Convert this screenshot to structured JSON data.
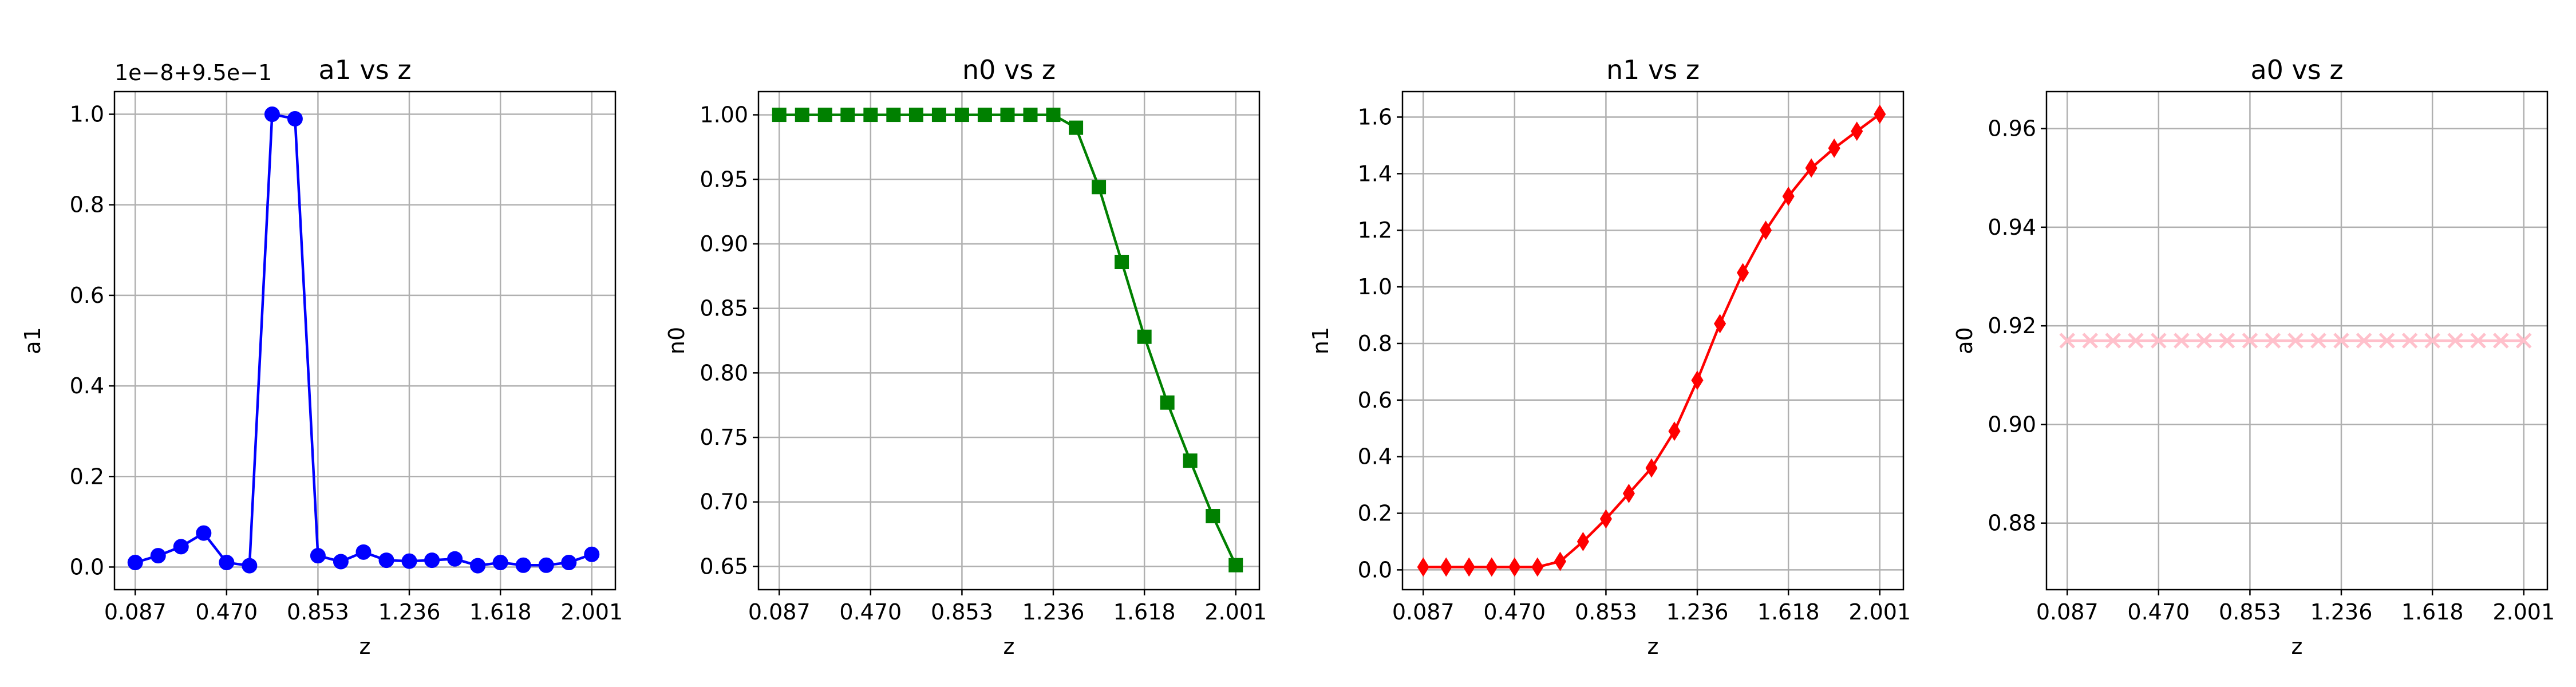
{
  "chart_data": [
    {
      "type": "line",
      "title": "a1 vs z",
      "xlabel": "z",
      "ylabel": "a1",
      "offset_text": "1e−8+9.5e−1",
      "grid": true,
      "xlim": [
        0.0,
        2.1
      ],
      "ylim": [
        -0.05,
        1.05
      ],
      "xticks": [
        0.087,
        0.47,
        0.853,
        1.236,
        1.618,
        2.001
      ],
      "xticklabels": [
        "0.087",
        "0.470",
        "0.853",
        "1.236",
        "1.618",
        "2.001"
      ],
      "yticks": [
        0.0,
        0.2,
        0.4,
        0.6,
        0.8,
        1.0
      ],
      "yticklabels": [
        "0.0",
        "0.2",
        "0.4",
        "0.6",
        "0.8",
        "1.0"
      ],
      "color": "#0000ff",
      "marker": "circle",
      "x": [
        0.087,
        0.183,
        0.279,
        0.374,
        0.47,
        0.566,
        0.661,
        0.757,
        0.853,
        0.949,
        1.044,
        1.14,
        1.236,
        1.331,
        1.427,
        1.523,
        1.618,
        1.714,
        1.81,
        1.905,
        2.001
      ],
      "y": [
        0.01,
        0.025,
        0.045,
        0.075,
        0.01,
        0.003,
        1.0,
        0.99,
        0.025,
        0.012,
        0.033,
        0.015,
        0.013,
        0.015,
        0.018,
        0.003,
        0.01,
        0.004,
        0.004,
        0.01,
        0.028
      ]
    },
    {
      "type": "line",
      "title": "n0 vs z",
      "xlabel": "z",
      "ylabel": "n0",
      "grid": true,
      "xlim": [
        0.0,
        2.1
      ],
      "ylim": [
        0.632,
        1.018
      ],
      "xticks": [
        0.087,
        0.47,
        0.853,
        1.236,
        1.618,
        2.001
      ],
      "xticklabels": [
        "0.087",
        "0.470",
        "0.853",
        "1.236",
        "1.618",
        "2.001"
      ],
      "yticks": [
        0.65,
        0.7,
        0.75,
        0.8,
        0.85,
        0.9,
        0.95,
        1.0
      ],
      "yticklabels": [
        "0.65",
        "0.70",
        "0.75",
        "0.80",
        "0.85",
        "0.90",
        "0.95",
        "1.00"
      ],
      "color": "#008000",
      "marker": "square",
      "x": [
        0.087,
        0.183,
        0.279,
        0.374,
        0.47,
        0.566,
        0.661,
        0.757,
        0.853,
        0.949,
        1.044,
        1.14,
        1.236,
        1.331,
        1.427,
        1.523,
        1.618,
        1.714,
        1.81,
        1.905,
        2.001
      ],
      "y": [
        1.0,
        1.0,
        1.0,
        1.0,
        1.0,
        1.0,
        1.0,
        1.0,
        1.0,
        1.0,
        1.0,
        1.0,
        1.0,
        0.99,
        0.944,
        0.886,
        0.828,
        0.777,
        0.732,
        0.689,
        0.651
      ]
    },
    {
      "type": "line",
      "title": "n1 vs z",
      "xlabel": "z",
      "ylabel": "n1",
      "grid": true,
      "xlim": [
        0.0,
        2.1
      ],
      "ylim": [
        -0.07,
        1.69
      ],
      "xticks": [
        0.087,
        0.47,
        0.853,
        1.236,
        1.618,
        2.001
      ],
      "xticklabels": [
        "0.087",
        "0.470",
        "0.853",
        "1.236",
        "1.618",
        "2.001"
      ],
      "yticks": [
        0.0,
        0.2,
        0.4,
        0.6,
        0.8,
        1.0,
        1.2,
        1.4,
        1.6
      ],
      "yticklabels": [
        "0.0",
        "0.2",
        "0.4",
        "0.6",
        "0.8",
        "1.0",
        "1.2",
        "1.4",
        "1.6"
      ],
      "color": "#ff0000",
      "marker": "diamond",
      "x": [
        0.087,
        0.183,
        0.279,
        0.374,
        0.47,
        0.566,
        0.661,
        0.757,
        0.853,
        0.949,
        1.044,
        1.14,
        1.236,
        1.331,
        1.427,
        1.523,
        1.618,
        1.714,
        1.81,
        1.905,
        2.001
      ],
      "y": [
        0.01,
        0.01,
        0.01,
        0.01,
        0.01,
        0.01,
        0.03,
        0.1,
        0.18,
        0.27,
        0.36,
        0.49,
        0.67,
        0.87,
        1.05,
        1.2,
        1.32,
        1.42,
        1.49,
        1.55,
        1.61
      ]
    },
    {
      "type": "line",
      "title": "a0 vs z",
      "xlabel": "z",
      "ylabel": "a0",
      "grid": true,
      "xlim": [
        0.0,
        2.1
      ],
      "ylim": [
        0.8665,
        0.9675
      ],
      "xticks": [
        0.087,
        0.47,
        0.853,
        1.236,
        1.618,
        2.001
      ],
      "xticklabels": [
        "0.087",
        "0.470",
        "0.853",
        "1.236",
        "1.618",
        "2.001"
      ],
      "yticks": [
        0.88,
        0.9,
        0.92,
        0.94,
        0.96
      ],
      "yticklabels": [
        "0.88",
        "0.90",
        "0.92",
        "0.94",
        "0.96"
      ],
      "color": "#ffc0cb",
      "marker": "x",
      "x": [
        0.087,
        0.183,
        0.279,
        0.374,
        0.47,
        0.566,
        0.661,
        0.757,
        0.853,
        0.949,
        1.044,
        1.14,
        1.236,
        1.331,
        1.427,
        1.523,
        1.618,
        1.714,
        1.81,
        1.905,
        2.001
      ],
      "y": [
        0.917,
        0.917,
        0.917,
        0.917,
        0.917,
        0.917,
        0.917,
        0.917,
        0.917,
        0.917,
        0.917,
        0.917,
        0.917,
        0.917,
        0.917,
        0.917,
        0.917,
        0.917,
        0.917,
        0.917,
        0.917
      ]
    }
  ]
}
